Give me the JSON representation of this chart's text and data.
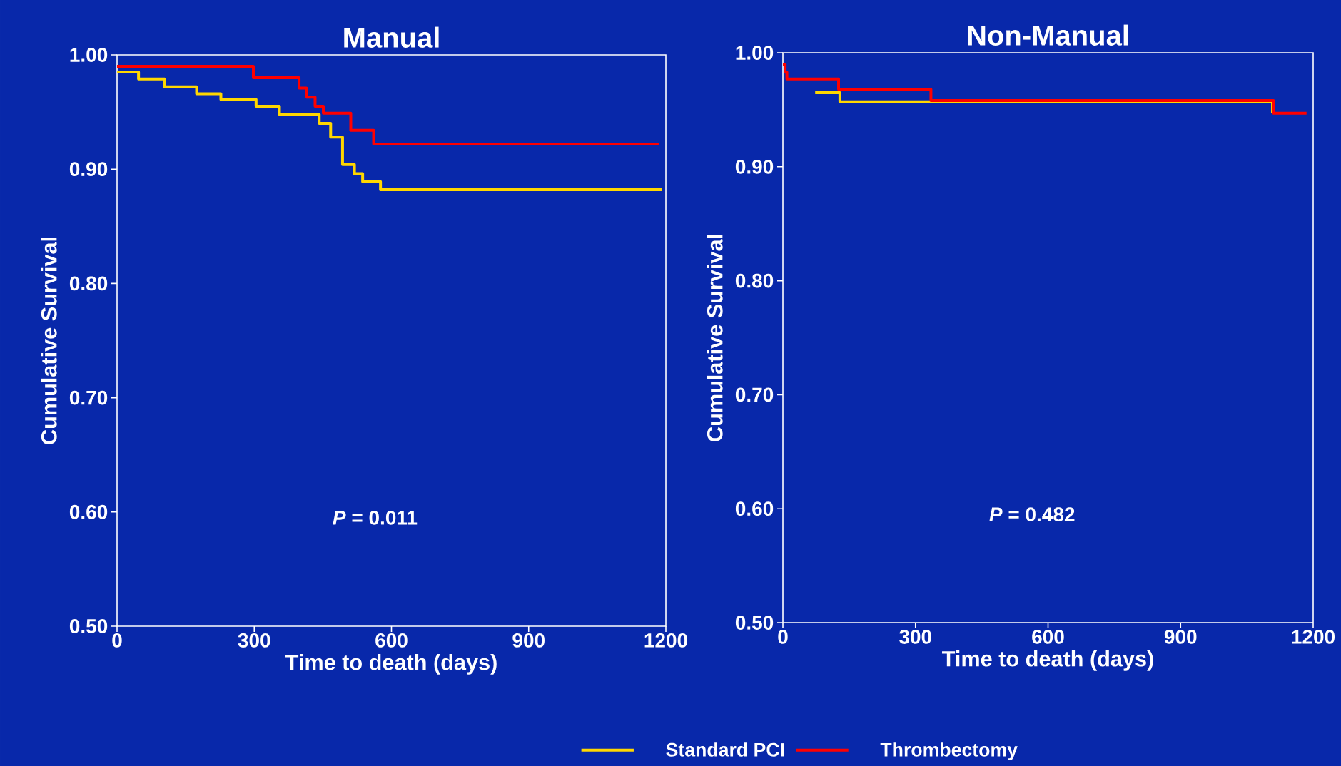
{
  "chart_data": [
    {
      "type": "step",
      "title": "Manual",
      "xlabel": "Time to death (days)",
      "ylabel": "Cumulative Survival",
      "xlim": [
        0,
        1200
      ],
      "ylim": [
        0.5,
        1.0
      ],
      "xticks": [
        0,
        300,
        600,
        900,
        1200
      ],
      "yticks": [
        {
          "value": 0.5,
          "label": "0.50"
        },
        {
          "value": 0.6,
          "label": "0.60"
        },
        {
          "value": 0.7,
          "label": "0.70"
        },
        {
          "value": 0.8,
          "label": "0.80"
        },
        {
          "value": 0.9,
          "label": "0.90"
        },
        {
          "value": 1.0,
          "label": "1.00"
        }
      ],
      "grid": false,
      "legend": "bottom",
      "line_style": "solid",
      "annotations": [
        "*P* = 0.011"
      ],
      "series": [
        {
          "name": "Standard PCI",
          "color": "#ffd700",
          "x": [
            0,
            47,
            104,
            174,
            227,
            304,
            355,
            442,
            467,
            493,
            519,
            537,
            576,
            1191
          ],
          "values": [
            0.985,
            0.979,
            0.972,
            0.966,
            0.961,
            0.955,
            0.948,
            0.94,
            0.928,
            0.904,
            0.896,
            0.889,
            0.882,
            0.882
          ]
        },
        {
          "name": "Thrombectomy",
          "color": "#ff0000",
          "x": [
            0,
            298,
            398,
            414,
            433,
            451,
            511,
            561,
            1186
          ],
          "values": [
            0.99,
            0.98,
            0.971,
            0.963,
            0.955,
            0.949,
            0.934,
            0.922,
            0.922
          ]
        }
      ]
    },
    {
      "type": "step",
      "title": "Non-Manual",
      "xlabel": "Time to death (days)",
      "ylabel": "Cumulative Survival",
      "xlim": [
        0,
        1200
      ],
      "ylim": [
        0.5,
        1.0
      ],
      "xticks": [
        0,
        300,
        600,
        900,
        1200
      ],
      "yticks": [
        {
          "value": 0.5,
          "label": "0.50"
        },
        {
          "value": 0.6,
          "label": "0.60"
        },
        {
          "value": 0.7,
          "label": "0.70"
        },
        {
          "value": 0.8,
          "label": "0.80"
        },
        {
          "value": 0.9,
          "label": "0.90"
        },
        {
          "value": 1.0,
          "label": "1.00"
        }
      ],
      "grid": false,
      "line_style": "solid",
      "annotations": [
        "*P* = 0.482"
      ],
      "series": [
        {
          "color": "#ffd700",
          "x": [
            73,
            129,
            1108
          ],
          "values": [
            0.965,
            0.957,
            0.947
          ]
        },
        {
          "color": "#ff0000",
          "x": [
            0,
            5,
            9,
            126,
            335,
            1110,
            1185
          ],
          "values": [
            0.99,
            0.983,
            0.977,
            0.968,
            0.958,
            0.947,
            0.947
          ]
        }
      ]
    }
  ]
}
